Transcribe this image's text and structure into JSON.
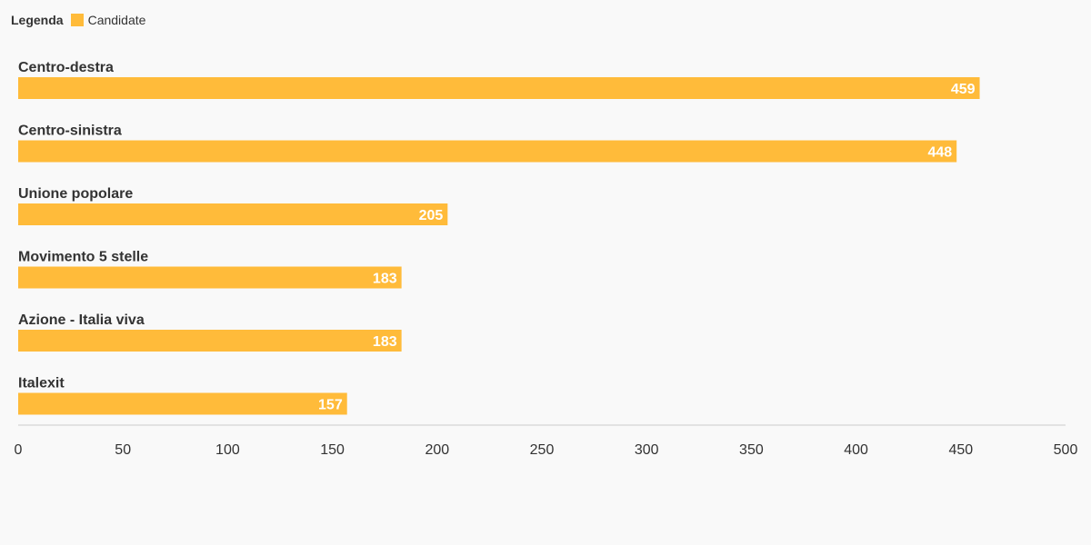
{
  "legend": {
    "title": "Legenda",
    "items": [
      {
        "label": "Candidate",
        "color": "#ffbb3a"
      }
    ]
  },
  "chart_data": {
    "type": "bar",
    "orientation": "horizontal",
    "categories": [
      "Centro-destra",
      "Centro-sinistra",
      "Unione popolare",
      "Movimento 5 stelle",
      "Azione - Italia viva",
      "Italexit"
    ],
    "series": [
      {
        "name": "Candidate",
        "values": [
          459,
          448,
          205,
          183,
          183,
          157
        ],
        "color": "#ffbb3a"
      }
    ],
    "xlim": [
      0,
      500
    ],
    "xticks": [
      "0",
      "50",
      "100",
      "150",
      "200",
      "250",
      "300",
      "350",
      "400",
      "450",
      "500"
    ],
    "data_labels": [
      "459",
      "448",
      "205",
      "183",
      "183",
      "157"
    ],
    "title": "",
    "xlabel": "",
    "ylabel": "",
    "grid": false,
    "legend_position": "top-left"
  }
}
